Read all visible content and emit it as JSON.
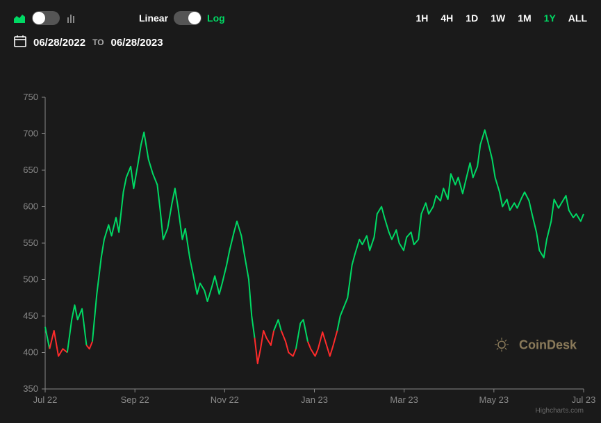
{
  "toolbar": {
    "scale_linear": "Linear",
    "scale_log": "Log",
    "timeframes": [
      "1H",
      "4H",
      "1D",
      "1W",
      "1M",
      "1Y",
      "ALL"
    ],
    "active_timeframe": "1Y"
  },
  "daterange": {
    "from": "06/28/2022",
    "to_label": "TO",
    "to": "06/28/2023"
  },
  "chart": {
    "type": "line",
    "background": "#1a1a1a",
    "axis_color": "#888888",
    "up_color": "#00d964",
    "down_color": "#ff2b2b",
    "line_width": 2,
    "ylim": [
      350,
      750
    ],
    "ytick_step": 50,
    "yticks": [
      350,
      400,
      450,
      500,
      550,
      600,
      650,
      700,
      750
    ],
    "xticks": [
      "Jul 22",
      "Sep 22",
      "Nov 22",
      "Jan 23",
      "Mar 23",
      "May 23",
      "Jul 23"
    ],
    "xdomain": [
      0,
      365
    ],
    "baseline": 435,
    "series": [
      {
        "x": 0,
        "y": 435
      },
      {
        "x": 3,
        "y": 405
      },
      {
        "x": 6,
        "y": 430
      },
      {
        "x": 9,
        "y": 395
      },
      {
        "x": 12,
        "y": 405
      },
      {
        "x": 15,
        "y": 400
      },
      {
        "x": 18,
        "y": 445
      },
      {
        "x": 20,
        "y": 465
      },
      {
        "x": 22,
        "y": 445
      },
      {
        "x": 25,
        "y": 460
      },
      {
        "x": 28,
        "y": 410
      },
      {
        "x": 30,
        "y": 405
      },
      {
        "x": 32,
        "y": 415
      },
      {
        "x": 35,
        "y": 480
      },
      {
        "x": 38,
        "y": 530
      },
      {
        "x": 40,
        "y": 555
      },
      {
        "x": 43,
        "y": 575
      },
      {
        "x": 45,
        "y": 560
      },
      {
        "x": 48,
        "y": 585
      },
      {
        "x": 50,
        "y": 565
      },
      {
        "x": 53,
        "y": 620
      },
      {
        "x": 55,
        "y": 640
      },
      {
        "x": 58,
        "y": 655
      },
      {
        "x": 60,
        "y": 625
      },
      {
        "x": 63,
        "y": 660
      },
      {
        "x": 65,
        "y": 685
      },
      {
        "x": 67,
        "y": 702
      },
      {
        "x": 70,
        "y": 665
      },
      {
        "x": 73,
        "y": 645
      },
      {
        "x": 76,
        "y": 630
      },
      {
        "x": 78,
        "y": 595
      },
      {
        "x": 80,
        "y": 555
      },
      {
        "x": 83,
        "y": 570
      },
      {
        "x": 86,
        "y": 605
      },
      {
        "x": 88,
        "y": 625
      },
      {
        "x": 90,
        "y": 600
      },
      {
        "x": 93,
        "y": 555
      },
      {
        "x": 95,
        "y": 570
      },
      {
        "x": 98,
        "y": 530
      },
      {
        "x": 100,
        "y": 510
      },
      {
        "x": 103,
        "y": 480
      },
      {
        "x": 105,
        "y": 495
      },
      {
        "x": 108,
        "y": 485
      },
      {
        "x": 110,
        "y": 470
      },
      {
        "x": 113,
        "y": 490
      },
      {
        "x": 115,
        "y": 505
      },
      {
        "x": 118,
        "y": 480
      },
      {
        "x": 120,
        "y": 495
      },
      {
        "x": 123,
        "y": 520
      },
      {
        "x": 125,
        "y": 540
      },
      {
        "x": 128,
        "y": 565
      },
      {
        "x": 130,
        "y": 580
      },
      {
        "x": 133,
        "y": 560
      },
      {
        "x": 135,
        "y": 535
      },
      {
        "x": 138,
        "y": 500
      },
      {
        "x": 140,
        "y": 450
      },
      {
        "x": 142,
        "y": 420
      },
      {
        "x": 144,
        "y": 385
      },
      {
        "x": 146,
        "y": 405
      },
      {
        "x": 148,
        "y": 430
      },
      {
        "x": 150,
        "y": 420
      },
      {
        "x": 153,
        "y": 410
      },
      {
        "x": 155,
        "y": 430
      },
      {
        "x": 158,
        "y": 445
      },
      {
        "x": 160,
        "y": 430
      },
      {
        "x": 163,
        "y": 415
      },
      {
        "x": 165,
        "y": 400
      },
      {
        "x": 168,
        "y": 395
      },
      {
        "x": 170,
        "y": 405
      },
      {
        "x": 173,
        "y": 440
      },
      {
        "x": 175,
        "y": 445
      },
      {
        "x": 178,
        "y": 415
      },
      {
        "x": 180,
        "y": 405
      },
      {
        "x": 183,
        "y": 395
      },
      {
        "x": 185,
        "y": 405
      },
      {
        "x": 188,
        "y": 428
      },
      {
        "x": 190,
        "y": 415
      },
      {
        "x": 193,
        "y": 395
      },
      {
        "x": 195,
        "y": 408
      },
      {
        "x": 198,
        "y": 430
      },
      {
        "x": 200,
        "y": 450
      },
      {
        "x": 203,
        "y": 465
      },
      {
        "x": 205,
        "y": 475
      },
      {
        "x": 208,
        "y": 520
      },
      {
        "x": 210,
        "y": 535
      },
      {
        "x": 213,
        "y": 555
      },
      {
        "x": 215,
        "y": 548
      },
      {
        "x": 218,
        "y": 560
      },
      {
        "x": 220,
        "y": 540
      },
      {
        "x": 223,
        "y": 558
      },
      {
        "x": 225,
        "y": 590
      },
      {
        "x": 228,
        "y": 600
      },
      {
        "x": 230,
        "y": 585
      },
      {
        "x": 233,
        "y": 565
      },
      {
        "x": 235,
        "y": 555
      },
      {
        "x": 238,
        "y": 568
      },
      {
        "x": 240,
        "y": 550
      },
      {
        "x": 243,
        "y": 540
      },
      {
        "x": 245,
        "y": 558
      },
      {
        "x": 248,
        "y": 565
      },
      {
        "x": 250,
        "y": 548
      },
      {
        "x": 253,
        "y": 555
      },
      {
        "x": 255,
        "y": 590
      },
      {
        "x": 258,
        "y": 605
      },
      {
        "x": 260,
        "y": 590
      },
      {
        "x": 263,
        "y": 600
      },
      {
        "x": 265,
        "y": 615
      },
      {
        "x": 268,
        "y": 608
      },
      {
        "x": 270,
        "y": 625
      },
      {
        "x": 273,
        "y": 610
      },
      {
        "x": 275,
        "y": 645
      },
      {
        "x": 278,
        "y": 630
      },
      {
        "x": 280,
        "y": 640
      },
      {
        "x": 283,
        "y": 618
      },
      {
        "x": 285,
        "y": 635
      },
      {
        "x": 288,
        "y": 660
      },
      {
        "x": 290,
        "y": 640
      },
      {
        "x": 293,
        "y": 655
      },
      {
        "x": 295,
        "y": 685
      },
      {
        "x": 298,
        "y": 705
      },
      {
        "x": 300,
        "y": 690
      },
      {
        "x": 303,
        "y": 665
      },
      {
        "x": 305,
        "y": 640
      },
      {
        "x": 308,
        "y": 620
      },
      {
        "x": 310,
        "y": 600
      },
      {
        "x": 313,
        "y": 610
      },
      {
        "x": 315,
        "y": 595
      },
      {
        "x": 318,
        "y": 605
      },
      {
        "x": 320,
        "y": 598
      },
      {
        "x": 323,
        "y": 612
      },
      {
        "x": 325,
        "y": 620
      },
      {
        "x": 328,
        "y": 608
      },
      {
        "x": 330,
        "y": 590
      },
      {
        "x": 333,
        "y": 565
      },
      {
        "x": 335,
        "y": 540
      },
      {
        "x": 338,
        "y": 530
      },
      {
        "x": 340,
        "y": 555
      },
      {
        "x": 343,
        "y": 580
      },
      {
        "x": 345,
        "y": 610
      },
      {
        "x": 348,
        "y": 598
      },
      {
        "x": 350,
        "y": 605
      },
      {
        "x": 353,
        "y": 615
      },
      {
        "x": 355,
        "y": 595
      },
      {
        "x": 358,
        "y": 585
      },
      {
        "x": 360,
        "y": 590
      },
      {
        "x": 363,
        "y": 580
      },
      {
        "x": 365,
        "y": 590
      }
    ],
    "watermark": "CoinDesk",
    "credit": "Highcharts.com"
  },
  "colors": {
    "active": "#00d964",
    "text": "#ffffff",
    "muted": "#888888",
    "brand": "#8a7a5a"
  }
}
